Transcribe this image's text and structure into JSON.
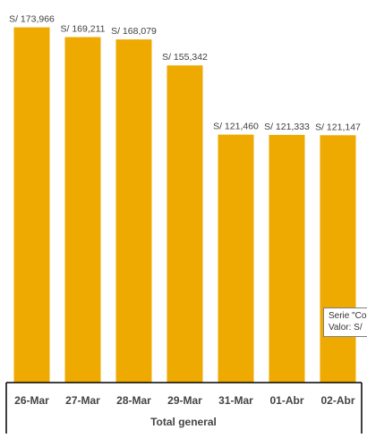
{
  "chart_data": {
    "type": "bar",
    "categories": [
      "26-Mar",
      "27-Mar",
      "28-Mar",
      "29-Mar",
      "31-Mar",
      "01-Abr",
      "02-Abr"
    ],
    "values": [
      173966,
      169211,
      168079,
      155342,
      121460,
      121333,
      121147
    ],
    "data_labels": [
      "S/ 173,966",
      "S/ 169,211",
      "S/ 168,079",
      "S/ 155,342",
      "S/ 121,460",
      "S/ 121,333",
      "S/ 121,147"
    ],
    "xlabel": "Total general",
    "ylim": [
      0,
      183000
    ],
    "grid": false,
    "legend": "none",
    "bar_color": "#eeaa00"
  },
  "tooltip": {
    "line1": "Serie \"Co",
    "line2": "Valor:  S/"
  }
}
